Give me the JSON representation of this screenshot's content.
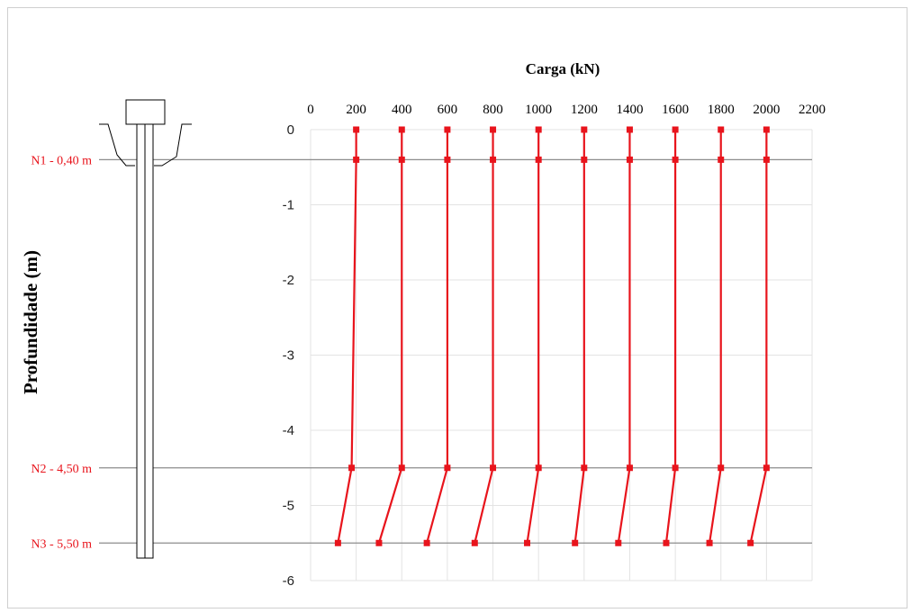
{
  "chart_data": {
    "type": "line",
    "title": "",
    "xlabel": "Carga (kN)",
    "ylabel": "Profundidade (m)",
    "xlim": [
      0,
      2200
    ],
    "ylim": [
      -6,
      0
    ],
    "x_ticks": [
      "0",
      "200",
      "400",
      "600",
      "800",
      "1000",
      "1200",
      "1400",
      "1600",
      "1800",
      "2000",
      "2200"
    ],
    "y_ticks": [
      "0",
      "-1",
      "-2",
      "-3",
      "-4",
      "-5",
      "-6"
    ],
    "x_axis_position": "top",
    "grid": true,
    "series_color": "#e8141c",
    "depth_levels": [
      {
        "label": "N1 - 0,40 m",
        "depth": -0.4
      },
      {
        "label": "N2 - 4,50 m",
        "depth": -4.5
      },
      {
        "label": "N3 - 5,50 m",
        "depth": -5.5
      }
    ],
    "series": [
      {
        "x": [
          200,
          200,
          180,
          120
        ],
        "y": [
          0,
          -0.4,
          -4.5,
          -5.5
        ]
      },
      {
        "x": [
          400,
          400,
          400,
          300
        ],
        "y": [
          0,
          -0.4,
          -4.5,
          -5.5
        ]
      },
      {
        "x": [
          600,
          600,
          600,
          510
        ],
        "y": [
          0,
          -0.4,
          -4.5,
          -5.5
        ]
      },
      {
        "x": [
          800,
          800,
          800,
          720
        ],
        "y": [
          0,
          -0.4,
          -4.5,
          -5.5
        ]
      },
      {
        "x": [
          1000,
          1000,
          1000,
          950
        ],
        "y": [
          0,
          -0.4,
          -4.5,
          -5.5
        ]
      },
      {
        "x": [
          1200,
          1200,
          1200,
          1160
        ],
        "y": [
          0,
          -0.4,
          -4.5,
          -5.5
        ]
      },
      {
        "x": [
          1400,
          1400,
          1400,
          1350
        ],
        "y": [
          0,
          -0.4,
          -4.5,
          -5.5
        ]
      },
      {
        "x": [
          1600,
          1600,
          1600,
          1560
        ],
        "y": [
          0,
          -0.4,
          -4.5,
          -5.5
        ]
      },
      {
        "x": [
          1800,
          1800,
          1800,
          1750
        ],
        "y": [
          0,
          -0.4,
          -4.5,
          -5.5
        ]
      },
      {
        "x": [
          2000,
          2000,
          2000,
          1930
        ],
        "y": [
          0,
          -0.4,
          -4.5,
          -5.5
        ]
      }
    ]
  }
}
